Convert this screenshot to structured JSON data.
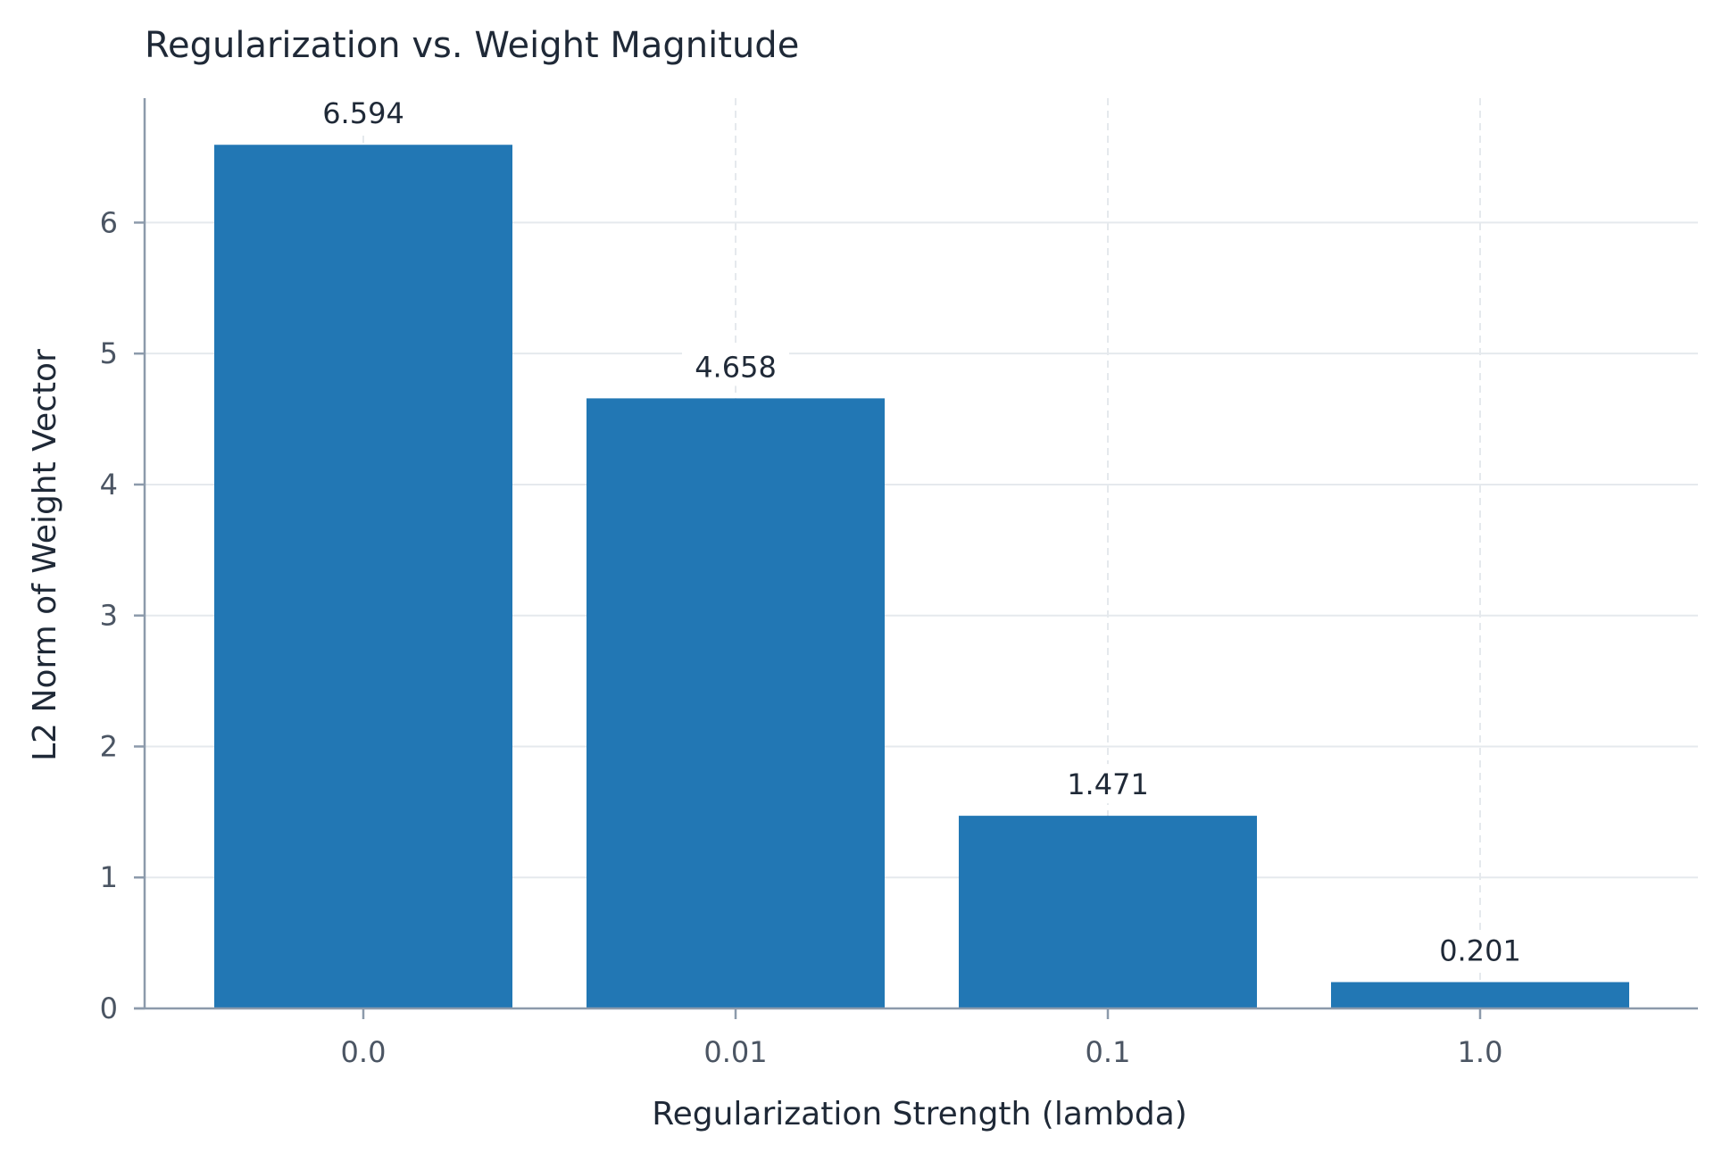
{
  "chart_data": {
    "type": "bar",
    "title": "Regularization vs. Weight Magnitude",
    "xlabel": "Regularization Strength (lambda)",
    "ylabel": "L2 Norm of Weight Vector",
    "categories": [
      "0.0",
      "0.01",
      "0.1",
      "1.0"
    ],
    "values": [
      6.594,
      4.658,
      1.471,
      0.201
    ],
    "value_labels": [
      "6.594",
      "4.658",
      "1.471",
      "0.201"
    ],
    "ylim": [
      0,
      6.95
    ],
    "yticks": [
      0,
      1,
      2,
      3,
      4,
      5,
      6
    ],
    "ytick_labels": [
      "0",
      "1",
      "2",
      "3",
      "4",
      "5",
      "6"
    ],
    "grid": true,
    "bar_color": "#2277b4",
    "grid_color": "#e5e9ed",
    "axis_color": "#8c9aab"
  }
}
